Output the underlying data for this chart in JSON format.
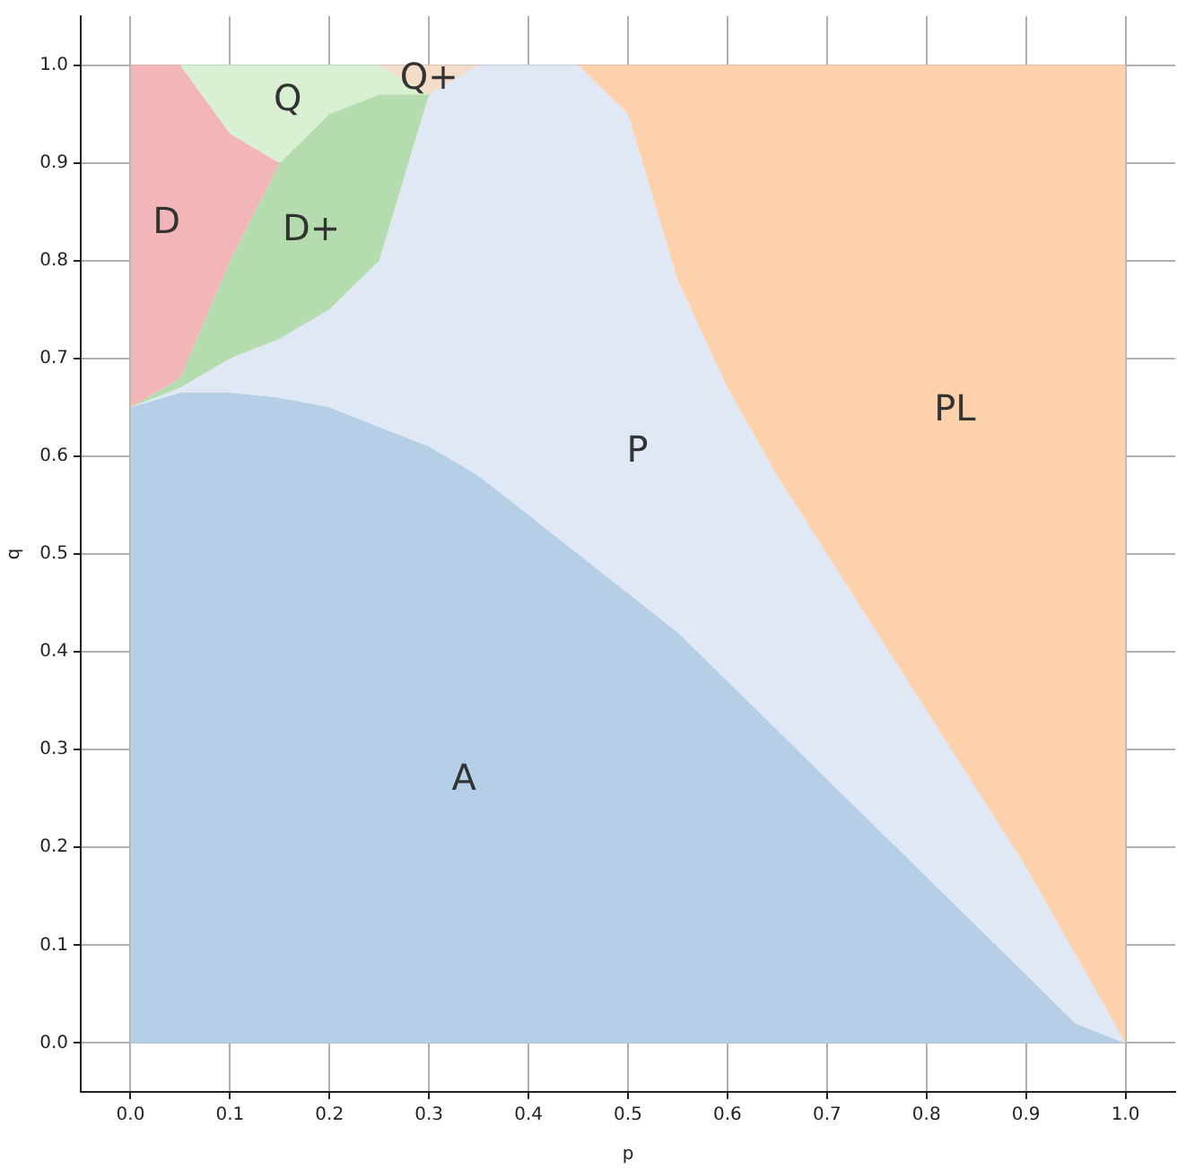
{
  "chart_data": {
    "type": "area",
    "stacked": true,
    "xlabel": "p",
    "ylabel": "q",
    "x": [
      0,
      0.05,
      0.1,
      0.15,
      0.2,
      0.25,
      0.3,
      0.35,
      0.4,
      0.45,
      0.5,
      0.55,
      0.6,
      0.65,
      0.7,
      0.75,
      0.8,
      0.85,
      0.9,
      0.95,
      1.0
    ],
    "series": [
      {
        "name": "A",
        "color": "#b4cfe6",
        "values": [
          0.65,
          0.665,
          0.665,
          0.66,
          0.65,
          0.63,
          0.61,
          0.58,
          0.54,
          0.5,
          0.46,
          0.42,
          0.37,
          0.32,
          0.27,
          0.22,
          0.17,
          0.12,
          0.07,
          0.02,
          0
        ]
      },
      {
        "name": "P",
        "color": "#e0e8f5",
        "values": [
          0,
          0.005,
          0.035,
          0.06,
          0.1,
          0.17,
          0.36,
          0.42,
          0.46,
          0.5,
          0.49,
          0.36,
          0.3,
          0.26,
          0.23,
          0.2,
          0.17,
          0.14,
          0.11,
          0.07,
          0
        ]
      },
      {
        "name": "D+",
        "color": "#b5dcae",
        "values": [
          0,
          0.01,
          0.1,
          0.18,
          0.2,
          0.17,
          0,
          null,
          null,
          null,
          null,
          null,
          null,
          null,
          null,
          null,
          null,
          null,
          null,
          null,
          null
        ]
      },
      {
        "name": "D",
        "color": "#f2b6b8",
        "values": [
          0.35,
          0.32,
          0.13,
          0,
          null,
          null,
          null,
          null,
          null,
          null,
          null,
          null,
          null,
          null,
          null,
          null,
          null,
          null,
          null,
          null,
          null
        ]
      },
      {
        "name": "Q",
        "color": "#d9f0d3",
        "values": [
          0,
          0,
          0.07,
          0.1,
          0.05,
          0.03,
          0,
          null,
          null,
          null,
          null,
          null,
          null,
          null,
          null,
          null,
          null,
          null,
          null,
          null,
          null
        ]
      },
      {
        "name": "Q+",
        "color": "#f3dcc8",
        "values": [
          null,
          null,
          null,
          null,
          null,
          0,
          0.03,
          0,
          null,
          null,
          null,
          null,
          null,
          null,
          null,
          null,
          null,
          null,
          null,
          null,
          null
        ]
      },
      {
        "name": "PL",
        "color": "#fdd1ab",
        "values": [
          null,
          null,
          null,
          null,
          null,
          null,
          null,
          null,
          null,
          0,
          0.05,
          0.22,
          0.33,
          0.42,
          0.5,
          0.58,
          0.66,
          0.74,
          0.82,
          0.91,
          1
        ]
      }
    ],
    "xlim": [
      -0.05,
      1.05
    ],
    "ylim": [
      -0.05,
      1.05
    ],
    "xticks": [
      {
        "value": 0,
        "label": "0.0"
      },
      {
        "value": 0.1,
        "label": "0.1"
      },
      {
        "value": 0.2,
        "label": "0.2"
      },
      {
        "value": 0.3,
        "label": "0.3"
      },
      {
        "value": 0.4,
        "label": "0.4"
      },
      {
        "value": 0.5,
        "label": "0.5"
      },
      {
        "value": 0.6,
        "label": "0.6"
      },
      {
        "value": 0.7,
        "label": "0.7"
      },
      {
        "value": 0.8,
        "label": "0.8"
      },
      {
        "value": 0.9,
        "label": "0.9"
      },
      {
        "value": 1,
        "label": "1.0"
      }
    ],
    "yticks": [
      {
        "value": 0,
        "label": "0.0"
      },
      {
        "value": 0.1,
        "label": "0.1"
      },
      {
        "value": 0.2,
        "label": "0.2"
      },
      {
        "value": 0.3,
        "label": "0.3"
      },
      {
        "value": 0.4,
        "label": "0.4"
      },
      {
        "value": 0.5,
        "label": "0.5"
      },
      {
        "value": 0.6,
        "label": "0.6"
      },
      {
        "value": 0.7,
        "label": "0.7"
      },
      {
        "value": 0.8,
        "label": "0.8"
      },
      {
        "value": 0.9,
        "label": "0.9"
      },
      {
        "value": 1,
        "label": "1.0"
      }
    ],
    "grid": true
  }
}
